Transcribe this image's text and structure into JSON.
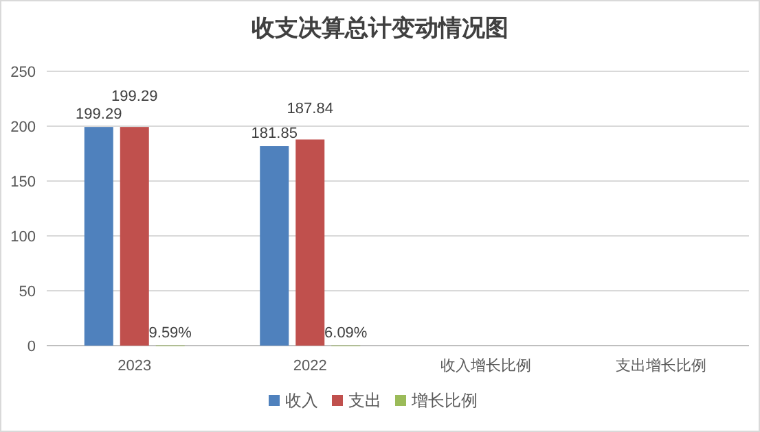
{
  "chart_data": {
    "type": "bar",
    "title": "收支决算总计变动情况图",
    "categories": [
      "2023",
      "2022",
      "收入增长比例",
      "支出增长比例"
    ],
    "series": [
      {
        "name": "收入",
        "color": "#4f81bd",
        "values": [
          199.29,
          181.85,
          null,
          null
        ],
        "value_labels": [
          "199.29",
          "181.85",
          null,
          null
        ]
      },
      {
        "name": "支出",
        "color": "#c0504d",
        "values": [
          199.29,
          187.84,
          null,
          null
        ],
        "value_labels": [
          "199.29",
          "187.84",
          null,
          null
        ]
      },
      {
        "name": "增长比例",
        "color": "#9bbb59",
        "values": [
          0.0959,
          0.0609,
          null,
          null
        ],
        "value_labels": [
          "9.59%",
          "6.09%",
          null,
          null
        ]
      }
    ],
    "ylim": [
      0,
      250
    ],
    "yticks": [
      0,
      50,
      100,
      150,
      200,
      250
    ],
    "grid": "y",
    "legend": "bottom"
  }
}
